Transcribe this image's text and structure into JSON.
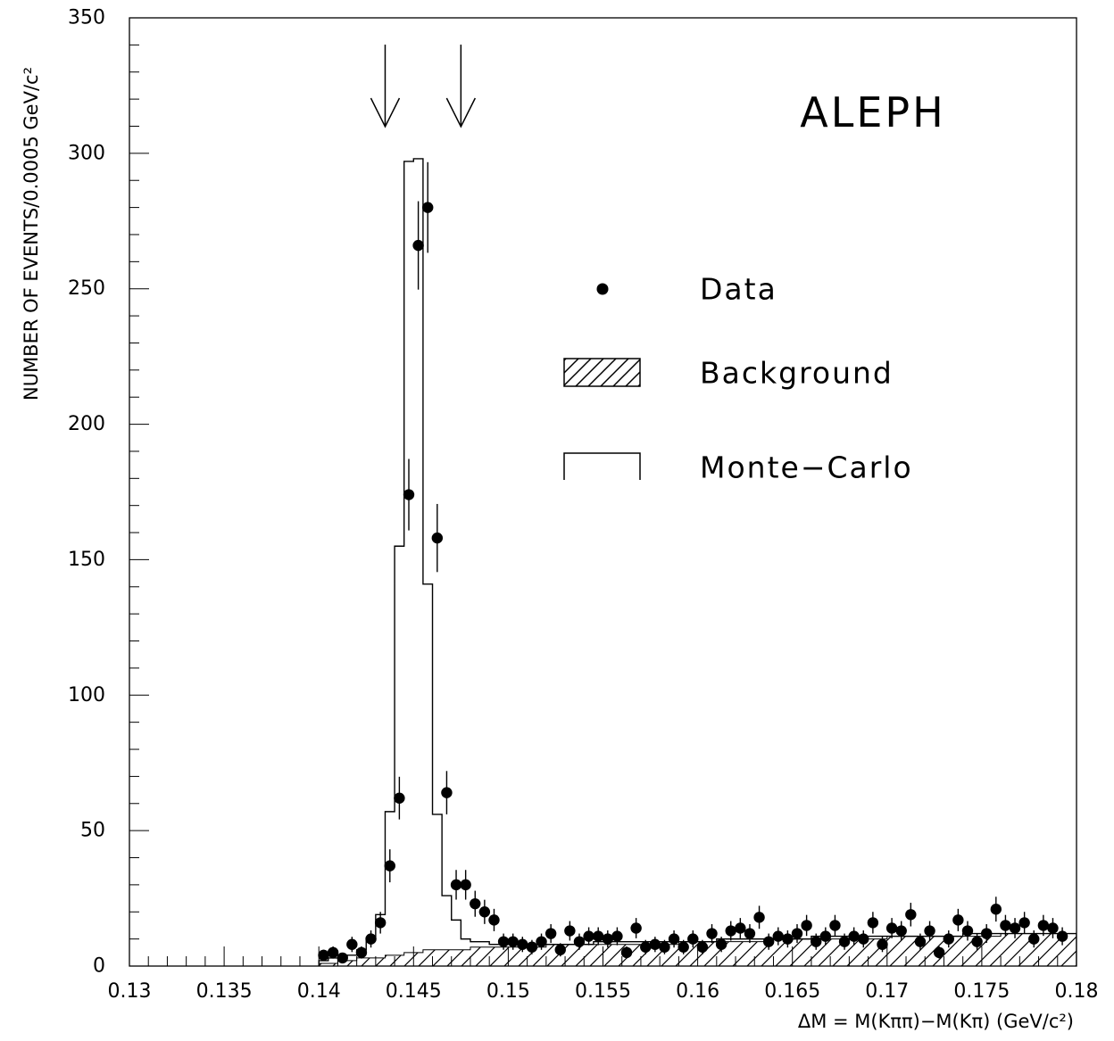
{
  "chart_data": {
    "type": "scatter",
    "title": "",
    "annotation": "ALEPH",
    "xlabel": "ΔM = M(Kππ)−M(Kπ) (GeV/c²)",
    "ylabel": "NUMBER OF EVENTS/0.0005 GeV/c²",
    "xlim": [
      0.13,
      0.18
    ],
    "ylim": [
      0,
      350
    ],
    "x_ticks": [
      "0.13",
      "0.135",
      "0.14",
      "0.145",
      "0.15",
      "0.155",
      "0.16",
      "0.165",
      "0.17",
      "0.175",
      "0.18"
    ],
    "y_ticks": [
      "0",
      "50",
      "100",
      "150",
      "200",
      "250",
      "300",
      "350"
    ],
    "grid": false,
    "legend": {
      "placement": "right",
      "entries": [
        {
          "label": "Data",
          "marker": "filled-circle"
        },
        {
          "label": "Background",
          "marker": "hatched-box"
        },
        {
          "label": "Monte−Carlo",
          "marker": "open-box"
        }
      ]
    },
    "arrows": [
      0.1435,
      0.1475
    ],
    "series": [
      {
        "name": "Data",
        "type": "points-with-errors",
        "points": [
          [
            0.14025,
            4
          ],
          [
            0.14075,
            5
          ],
          [
            0.14125,
            3
          ],
          [
            0.14175,
            8
          ],
          [
            0.14225,
            5
          ],
          [
            0.14275,
            10
          ],
          [
            0.14325,
            16
          ],
          [
            0.14375,
            37
          ],
          [
            0.14425,
            62
          ],
          [
            0.14475,
            174
          ],
          [
            0.14525,
            266
          ],
          [
            0.14575,
            280
          ],
          [
            0.14625,
            158
          ],
          [
            0.14675,
            64
          ],
          [
            0.14725,
            30
          ],
          [
            0.14775,
            30
          ],
          [
            0.14825,
            23
          ],
          [
            0.14875,
            20
          ],
          [
            0.14925,
            17
          ],
          [
            0.14975,
            9
          ],
          [
            0.15025,
            9
          ],
          [
            0.15075,
            8
          ],
          [
            0.15125,
            7
          ],
          [
            0.15175,
            9
          ],
          [
            0.15225,
            12
          ],
          [
            0.15275,
            6
          ],
          [
            0.15325,
            13
          ],
          [
            0.15375,
            9
          ],
          [
            0.15425,
            11
          ],
          [
            0.15475,
            11
          ],
          [
            0.15525,
            10
          ],
          [
            0.15575,
            11
          ],
          [
            0.15625,
            5
          ],
          [
            0.15675,
            14
          ],
          [
            0.15725,
            7
          ],
          [
            0.15775,
            8
          ],
          [
            0.15825,
            7
          ],
          [
            0.15875,
            10
          ],
          [
            0.15925,
            7
          ],
          [
            0.15975,
            10
          ],
          [
            0.16025,
            7
          ],
          [
            0.16075,
            12
          ],
          [
            0.16125,
            8
          ],
          [
            0.16175,
            13
          ],
          [
            0.16225,
            14
          ],
          [
            0.16275,
            12
          ],
          [
            0.16325,
            18
          ],
          [
            0.16375,
            9
          ],
          [
            0.16425,
            11
          ],
          [
            0.16475,
            10
          ],
          [
            0.16525,
            12
          ],
          [
            0.16575,
            15
          ],
          [
            0.16625,
            9
          ],
          [
            0.16675,
            11
          ],
          [
            0.16725,
            15
          ],
          [
            0.16775,
            9
          ],
          [
            0.16825,
            11
          ],
          [
            0.16875,
            10
          ],
          [
            0.16925,
            16
          ],
          [
            0.16975,
            8
          ],
          [
            0.17025,
            14
          ],
          [
            0.17075,
            13
          ],
          [
            0.17125,
            19
          ],
          [
            0.17175,
            9
          ],
          [
            0.17225,
            13
          ],
          [
            0.17275,
            5
          ],
          [
            0.17325,
            10
          ],
          [
            0.17375,
            17
          ],
          [
            0.17425,
            13
          ],
          [
            0.17475,
            9
          ],
          [
            0.17525,
            12
          ],
          [
            0.17575,
            21
          ],
          [
            0.17625,
            15
          ],
          [
            0.17675,
            14
          ],
          [
            0.17725,
            16
          ],
          [
            0.17775,
            10
          ],
          [
            0.17825,
            15
          ],
          [
            0.17875,
            14
          ],
          [
            0.17925,
            11
          ]
        ]
      },
      {
        "name": "Monte−Carlo",
        "type": "histogram",
        "x_start": 0.14,
        "bin_width": 0.0005,
        "values": [
          2,
          3,
          3,
          4,
          6,
          10,
          19,
          57,
          155,
          297,
          298,
          141,
          56,
          26,
          17,
          10,
          9,
          9,
          8,
          8,
          8,
          8,
          8,
          8,
          8,
          8,
          8,
          8,
          8,
          9,
          9,
          9,
          9,
          9,
          9,
          9,
          9,
          9,
          9,
          9,
          9,
          9,
          10,
          10,
          10,
          10,
          10,
          10,
          10,
          10,
          10,
          10,
          11,
          11,
          11,
          11,
          11,
          11,
          11,
          11,
          11,
          11,
          11,
          11,
          11,
          11,
          11,
          11,
          12,
          12,
          12,
          12,
          12,
          12,
          12,
          12,
          12,
          12,
          12,
          12
        ]
      },
      {
        "name": "Background",
        "type": "hatched-histogram",
        "x_start": 0.14,
        "bin_width": 0.0005,
        "values": [
          1,
          1,
          2,
          2,
          3,
          3,
          3,
          4,
          4,
          5,
          5,
          6,
          6,
          6,
          6,
          6,
          7,
          7,
          7,
          7,
          7,
          7,
          7,
          7,
          8,
          8,
          8,
          8,
          8,
          8,
          8,
          8,
          8,
          8,
          8,
          8,
          8,
          8,
          9,
          9,
          9,
          9,
          9,
          9,
          9,
          9,
          9,
          9,
          10,
          10,
          10,
          10,
          10,
          10,
          10,
          10,
          10,
          10,
          10,
          10,
          11,
          11,
          11,
          11,
          11,
          11,
          11,
          11,
          11,
          11,
          11,
          11,
          12,
          12,
          12,
          12,
          12,
          12,
          12,
          12
        ]
      }
    ]
  }
}
